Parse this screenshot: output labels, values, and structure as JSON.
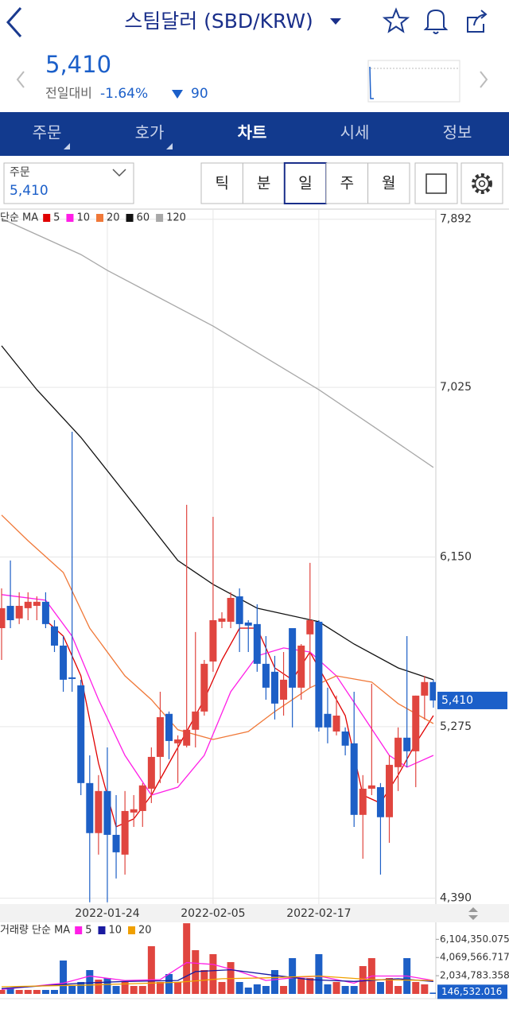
{
  "header": {
    "title": "스팀달러 (SBD/KRW)"
  },
  "quote": {
    "price": "5,410",
    "change_label": "전일대비",
    "change_rate": "-1.64%",
    "change": 90
  },
  "tabs": [
    {
      "label": "주문",
      "active": false
    },
    {
      "label": "호가",
      "active": false
    },
    {
      "label": "차트",
      "active": true
    },
    {
      "label": "시세",
      "active": false
    },
    {
      "label": "정보",
      "active": false
    }
  ],
  "order": {
    "label": "주문",
    "value": "5,410"
  },
  "periods": [
    {
      "label": "틱",
      "active": false
    },
    {
      "label": "분",
      "active": false
    },
    {
      "label": "일",
      "active": true
    },
    {
      "label": "주",
      "active": false
    },
    {
      "label": "월",
      "active": false
    }
  ],
  "chart_data": [
    {
      "type": "candlestick",
      "legend_title": "단순 MA",
      "categories": [
        null,
        null,
        null,
        null,
        null,
        null,
        null,
        null,
        null,
        null,
        null,
        null,
        "2022-01-24",
        null,
        null,
        null,
        null,
        null,
        null,
        null,
        null,
        null,
        null,
        null,
        "2022-02-05",
        null,
        null,
        null,
        null,
        null,
        null,
        null,
        null,
        null,
        null,
        null,
        "2022-02-17",
        null,
        null,
        null,
        null,
        null,
        null,
        null,
        null,
        null,
        null,
        null,
        null,
        null
      ],
      "ohlc": [
        [
          5783,
          5988,
          5619,
          5886
        ],
        [
          5898,
          6132,
          5783,
          5824
        ],
        [
          5833,
          5968,
          5804,
          5898
        ],
        [
          5886,
          5968,
          5824,
          5919
        ],
        [
          5898,
          5947,
          5824,
          5919
        ],
        [
          5919,
          5968,
          5783,
          5804
        ],
        [
          5792,
          5824,
          5660,
          5693
        ],
        [
          5693,
          5742,
          5455,
          5517
        ],
        [
          5529,
          6796,
          5455,
          5521
        ],
        [
          5488,
          5517,
          4922,
          4984
        ],
        [
          4984,
          5127,
          4369,
          4726
        ],
        [
          4726,
          5025,
          4615,
          4943
        ],
        [
          4943,
          5168,
          4369,
          4717
        ],
        [
          4717,
          4922,
          4492,
          4627
        ],
        [
          4615,
          4943,
          4512,
          4840
        ],
        [
          4832,
          4922,
          4758,
          4849
        ],
        [
          4840,
          4984,
          4758,
          4972
        ],
        [
          4955,
          5168,
          4881,
          5119
        ],
        [
          5119,
          5455,
          4984,
          5324
        ],
        [
          5341,
          5353,
          5107,
          5201
        ],
        [
          5189,
          5230,
          4984,
          5209
        ],
        [
          5177,
          6419,
          5168,
          5259
        ],
        [
          5259,
          5763,
          5168,
          5353
        ],
        [
          5353,
          5619,
          5332,
          5599
        ],
        [
          5611,
          6357,
          5558,
          5824
        ],
        [
          5816,
          5865,
          5783,
          5833
        ],
        [
          5816,
          5968,
          5783,
          5939
        ],
        [
          5947,
          5988,
          5660,
          5804
        ],
        [
          5812,
          5824,
          5660,
          5796
        ],
        [
          5804,
          5906,
          5558,
          5599
        ],
        [
          5599,
          5742,
          5414,
          5476
        ],
        [
          5558,
          5640,
          5312,
          5394
        ],
        [
          5414,
          5660,
          5332,
          5517
        ],
        [
          5783,
          5783,
          5271,
          5476
        ],
        [
          5476,
          5701,
          5414,
          5693
        ],
        [
          5751,
          6120,
          5476,
          5824
        ],
        [
          5816,
          5824,
          5250,
          5271
        ],
        [
          5341,
          5476,
          5189,
          5271
        ],
        [
          5250,
          5435,
          5230,
          5332
        ],
        [
          5250,
          5271,
          5127,
          5177
        ],
        [
          5189,
          5455,
          4758,
          4820
        ],
        [
          4820,
          5025,
          4594,
          4955
        ],
        [
          4955,
          5496,
          4922,
          4972
        ],
        [
          4963,
          4984,
          4512,
          4808
        ],
        [
          4808,
          5127,
          4676,
          5078
        ],
        [
          5066,
          5271,
          4943,
          5218
        ],
        [
          5218,
          5742,
          5066,
          5148
        ],
        [
          5148,
          5435,
          4963,
          5435
        ],
        [
          5435,
          5537,
          5312,
          5505
        ],
        [
          5505,
          5517,
          5373,
          5410
        ]
      ],
      "up_color": "#e0453f",
      "down_color": "#1d5fc6",
      "ylim": [
        4360,
        7940
      ],
      "yticks": [
        {
          "value": 4390,
          "label": "4,390"
        },
        {
          "value": 5275,
          "label": "5,275"
        },
        {
          "value": 6150,
          "label": "6,150"
        },
        {
          "value": 7025,
          "label": "7,025"
        },
        {
          "value": 7892,
          "label": "7,892"
        }
      ],
      "grid": true,
      "price_marker": {
        "value": 5410,
        "label": "5,410"
      },
      "ma": [
        {
          "name": "5",
          "color": "#e00000",
          "x": [
            5,
            7,
            9,
            11,
            13,
            15,
            17,
            19,
            21,
            23,
            25,
            27,
            29,
            31,
            33,
            35,
            37,
            39,
            41,
            43,
            45,
            47,
            49
          ],
          "values": [
            5824,
            5742,
            5537,
            5086,
            4758,
            4799,
            4922,
            5086,
            5250,
            5414,
            5619,
            5783,
            5783,
            5578,
            5517,
            5660,
            5496,
            5332,
            4922,
            4881,
            5025,
            5189,
            5332
          ]
        },
        {
          "name": "10",
          "color": "#ff1ee6",
          "x": [
            0,
            5,
            8,
            11,
            14,
            17,
            20,
            23,
            26,
            29,
            32,
            35,
            38,
            41,
            44,
            46,
            49
          ],
          "values": [
            5956,
            5927,
            5742,
            5414,
            5127,
            4922,
            4963,
            5127,
            5455,
            5640,
            5681,
            5660,
            5537,
            5332,
            5127,
            5066,
            5127
          ]
        },
        {
          "name": "20",
          "color": "#f07838",
          "x": [
            0,
            3,
            7,
            10,
            14,
            17,
            20,
            24,
            28,
            31,
            35,
            38,
            42,
            45,
            49
          ],
          "values": [
            6366,
            6234,
            6070,
            5783,
            5537,
            5414,
            5259,
            5209,
            5250,
            5353,
            5476,
            5537,
            5505,
            5394,
            5291
          ]
        },
        {
          "name": "60",
          "color": "#111111",
          "x": [
            0,
            4,
            9,
            14,
            20,
            24,
            29,
            36,
            40,
            45,
            49
          ],
          "values": [
            7239,
            7013,
            6767,
            6480,
            6132,
            6009,
            5886,
            5816,
            5701,
            5578,
            5517
          ]
        },
        {
          "name": "120",
          "color": "#a8a8a8",
          "x": [
            0,
            9,
            12,
            18,
            24,
            30,
            36,
            42,
            49
          ],
          "values": [
            7895,
            7710,
            7628,
            7485,
            7341,
            7177,
            7013,
            6829,
            6612
          ]
        }
      ]
    },
    {
      "type": "bar",
      "legend_title": "거래량 단순 MA",
      "values": [
        444000,
        711000,
        444000,
        444000,
        444000,
        444000,
        444000,
        3733000,
        889000,
        1333000,
        2667000,
        1600000,
        1778000,
        889000,
        1333000,
        889000,
        889000,
        5333000,
        1333000,
        2222000,
        1333000,
        7900000,
        4889000,
        2667000,
        4444000,
        1333000,
        3556000,
        1333000,
        711000,
        1067000,
        889000,
        2667000,
        889000,
        4000000,
        1778000,
        1778000,
        4444000,
        1067000,
        1333000,
        889000,
        889000,
        3111000,
        4000000,
        1333000,
        1778000,
        889000,
        4000000,
        1333000,
        1067000,
        146532.016
      ],
      "ylim": [
        0,
        8000000
      ],
      "yticks": [
        {
          "value": 2034783.358,
          "label": "2,034,783.358"
        },
        {
          "value": 4069566.717,
          "label": "4,069,566.717"
        },
        {
          "value": 6104350.075,
          "label": "6,104,350.075"
        }
      ],
      "last_marker": {
        "value": 146532.016,
        "label": "146,532.016"
      },
      "ma": [
        {
          "name": "5",
          "color": "#ff1ee6",
          "x": [
            0,
            7,
            10,
            14,
            18,
            21,
            24,
            27,
            30,
            33,
            36,
            40,
            42,
            46,
            49
          ],
          "values": [
            500000,
            1200000,
            2000000,
            1500000,
            1600000,
            3500000,
            3300000,
            2500000,
            1500000,
            1800000,
            2000000,
            1200000,
            2000000,
            2000000,
            1500000
          ]
        },
        {
          "name": "10",
          "color": "#1a1aa0",
          "x": [
            0,
            9,
            14,
            20,
            22,
            26,
            30,
            35,
            40,
            45,
            49
          ],
          "values": [
            600000,
            1200000,
            1400000,
            1500000,
            2500000,
            2700000,
            2200000,
            1600000,
            1400000,
            1700000,
            1400000
          ]
        },
        {
          "name": "20",
          "color": "#f0a000",
          "x": [
            0,
            10,
            20,
            25,
            30,
            36,
            42,
            49
          ],
          "values": [
            800000,
            1000000,
            1300000,
            1700000,
            1800000,
            2000000,
            1600000,
            1500000
          ]
        }
      ]
    }
  ]
}
